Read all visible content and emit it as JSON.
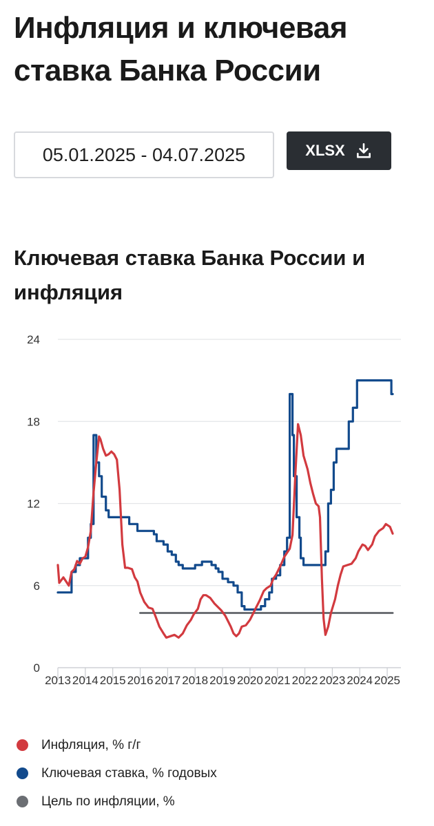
{
  "header": {
    "title": "Инфляция и ключевая ставка Банка России"
  },
  "controls": {
    "date_range": "05.01.2025 - 04.07.2025",
    "export_label": "XLSX",
    "export_icon": "download-icon"
  },
  "chart_title": "Ключевая ставка Банка России и инфляция",
  "colors": {
    "inflation": "#d23a3f",
    "key_rate": "#124a8c",
    "target": "#6b6e73",
    "grid": "#e3e5e8",
    "axis_text": "#333333"
  },
  "legend": {
    "inflation": "Инфляция, % г/г",
    "key_rate": "Ключевая ставка, % годовых",
    "target": "Цель по инфляции, %"
  },
  "chart_data": {
    "type": "line",
    "title": "Ключевая ставка Банка России и инфляция",
    "xlabel": "",
    "ylabel": "",
    "ylim": [
      0,
      24
    ],
    "yticks": [
      0,
      6,
      12,
      18,
      24
    ],
    "xlim": [
      2013.0,
      2025.5
    ],
    "xticks": [
      {
        "label": "2013",
        "x": 2013.0
      },
      {
        "label": "2014",
        "x": 2014.0
      },
      {
        "label": "2015",
        "x": 2015.0
      },
      {
        "label": "2016",
        "x": 2016.0
      },
      {
        "label": "2017",
        "x": 2017.0
      },
      {
        "label": "2018",
        "x": 2018.0
      },
      {
        "label": "2019",
        "x": 2019.0
      },
      {
        "label": "2020",
        "x": 2020.0
      },
      {
        "label": "2021",
        "x": 2021.0
      },
      {
        "label": "2022",
        "x": 2022.0
      },
      {
        "label": "2023",
        "x": 2023.0
      },
      {
        "label": "2024",
        "x": 2024.0
      },
      {
        "label": "2025",
        "x": 2025.0
      }
    ],
    "grid": true,
    "legend_position": "bottom",
    "series": [
      {
        "name": "Инфляция, % г/г",
        "key": "inflation",
        "step": false,
        "points": [
          [
            2013.0,
            7.5
          ],
          [
            2013.05,
            6.2
          ],
          [
            2013.2,
            6.6
          ],
          [
            2013.3,
            6.3
          ],
          [
            2013.4,
            6.0
          ],
          [
            2013.5,
            7.0
          ],
          [
            2013.6,
            7.2
          ],
          [
            2013.7,
            7.8
          ],
          [
            2013.8,
            7.6
          ],
          [
            2013.9,
            8.0
          ],
          [
            2014.0,
            8.1
          ],
          [
            2014.1,
            8.8
          ],
          [
            2014.2,
            10.0
          ],
          [
            2014.3,
            12.8
          ],
          [
            2014.4,
            15.0
          ],
          [
            2014.5,
            16.9
          ],
          [
            2014.55,
            16.7
          ],
          [
            2014.65,
            16.0
          ],
          [
            2014.75,
            15.5
          ],
          [
            2014.85,
            15.6
          ],
          [
            2014.95,
            15.8
          ],
          [
            2015.05,
            15.6
          ],
          [
            2015.15,
            15.2
          ],
          [
            2015.25,
            13.0
          ],
          [
            2015.35,
            9.0
          ],
          [
            2015.45,
            7.3
          ],
          [
            2015.55,
            7.3
          ],
          [
            2015.7,
            7.2
          ],
          [
            2015.8,
            6.6
          ],
          [
            2015.9,
            6.3
          ],
          [
            2016.0,
            5.5
          ],
          [
            2016.15,
            4.8
          ],
          [
            2016.3,
            4.4
          ],
          [
            2016.45,
            4.3
          ],
          [
            2016.55,
            3.8
          ],
          [
            2016.7,
            3.0
          ],
          [
            2016.85,
            2.5
          ],
          [
            2016.95,
            2.2
          ],
          [
            2017.1,
            2.3
          ],
          [
            2017.25,
            2.4
          ],
          [
            2017.4,
            2.2
          ],
          [
            2017.55,
            2.5
          ],
          [
            2017.7,
            3.1
          ],
          [
            2017.85,
            3.5
          ],
          [
            2017.95,
            3.9
          ],
          [
            2018.1,
            4.3
          ],
          [
            2018.2,
            5.0
          ],
          [
            2018.3,
            5.3
          ],
          [
            2018.4,
            5.3
          ],
          [
            2018.55,
            5.1
          ],
          [
            2018.7,
            4.7
          ],
          [
            2018.85,
            4.4
          ],
          [
            2018.95,
            4.2
          ],
          [
            2019.1,
            3.8
          ],
          [
            2019.2,
            3.4
          ],
          [
            2019.3,
            3.0
          ],
          [
            2019.4,
            2.5
          ],
          [
            2019.5,
            2.3
          ],
          [
            2019.6,
            2.5
          ],
          [
            2019.7,
            3.0
          ],
          [
            2019.85,
            3.1
          ],
          [
            2020.0,
            3.5
          ],
          [
            2020.1,
            3.9
          ],
          [
            2020.2,
            4.3
          ],
          [
            2020.35,
            4.9
          ],
          [
            2020.5,
            5.6
          ],
          [
            2020.6,
            5.8
          ],
          [
            2020.75,
            6.0
          ],
          [
            2020.85,
            6.5
          ],
          [
            2020.95,
            6.8
          ],
          [
            2021.1,
            7.4
          ],
          [
            2021.25,
            8.1
          ],
          [
            2021.35,
            8.4
          ],
          [
            2021.45,
            8.7
          ],
          [
            2021.55,
            9.7
          ],
          [
            2021.65,
            14.0
          ],
          [
            2021.75,
            17.8
          ],
          [
            2021.85,
            17.0
          ],
          [
            2021.95,
            15.5
          ],
          [
            2022.1,
            14.5
          ],
          [
            2022.2,
            13.5
          ],
          [
            2022.3,
            12.7
          ],
          [
            2022.4,
            12.0
          ],
          [
            2022.5,
            11.8
          ],
          [
            2022.55,
            11.0
          ],
          [
            2022.62,
            6.5
          ],
          [
            2022.68,
            3.6
          ],
          [
            2022.75,
            2.4
          ],
          [
            2022.85,
            3.0
          ],
          [
            2022.95,
            4.0
          ],
          [
            2023.1,
            5.0
          ],
          [
            2023.2,
            6.0
          ],
          [
            2023.3,
            6.8
          ],
          [
            2023.4,
            7.4
          ],
          [
            2023.55,
            7.5
          ],
          [
            2023.7,
            7.6
          ],
          [
            2023.85,
            8.0
          ],
          [
            2023.95,
            8.5
          ],
          [
            2024.1,
            9.0
          ],
          [
            2024.2,
            8.9
          ],
          [
            2024.3,
            8.6
          ],
          [
            2024.45,
            9.0
          ],
          [
            2024.55,
            9.6
          ],
          [
            2024.7,
            10.0
          ],
          [
            2024.85,
            10.2
          ],
          [
            2024.95,
            10.5
          ],
          [
            2025.1,
            10.3
          ],
          [
            2025.2,
            9.8
          ]
        ]
      },
      {
        "name": "Ключевая ставка, % годовых",
        "key": "key_rate",
        "step": true,
        "points": [
          [
            2013.0,
            5.5
          ],
          [
            2013.5,
            7.0
          ],
          [
            2013.65,
            7.5
          ],
          [
            2013.8,
            8.0
          ],
          [
            2014.1,
            9.5
          ],
          [
            2014.2,
            10.5
          ],
          [
            2014.3,
            17.0
          ],
          [
            2014.4,
            15.0
          ],
          [
            2014.5,
            14.0
          ],
          [
            2014.6,
            12.5
          ],
          [
            2014.75,
            11.5
          ],
          [
            2014.85,
            11.0
          ],
          [
            2015.6,
            10.5
          ],
          [
            2015.9,
            10.0
          ],
          [
            2016.5,
            9.75
          ],
          [
            2016.6,
            9.25
          ],
          [
            2016.85,
            9.0
          ],
          [
            2017.0,
            8.5
          ],
          [
            2017.15,
            8.25
          ],
          [
            2017.3,
            7.75
          ],
          [
            2017.4,
            7.5
          ],
          [
            2017.55,
            7.25
          ],
          [
            2018.0,
            7.5
          ],
          [
            2018.25,
            7.75
          ],
          [
            2018.6,
            7.5
          ],
          [
            2018.75,
            7.25
          ],
          [
            2018.85,
            7.0
          ],
          [
            2019.0,
            6.5
          ],
          [
            2019.2,
            6.25
          ],
          [
            2019.4,
            6.0
          ],
          [
            2019.55,
            5.5
          ],
          [
            2019.7,
            4.5
          ],
          [
            2019.8,
            4.25
          ],
          [
            2020.4,
            4.5
          ],
          [
            2020.55,
            5.0
          ],
          [
            2020.7,
            5.5
          ],
          [
            2020.8,
            6.5
          ],
          [
            2020.95,
            6.75
          ],
          [
            2021.1,
            7.5
          ],
          [
            2021.25,
            8.5
          ],
          [
            2021.35,
            9.5
          ],
          [
            2021.45,
            20.0
          ],
          [
            2021.55,
            17.0
          ],
          [
            2021.6,
            14.0
          ],
          [
            2021.7,
            11.0
          ],
          [
            2021.8,
            9.5
          ],
          [
            2021.85,
            8.0
          ],
          [
            2021.95,
            7.5
          ],
          [
            2022.5,
            7.5
          ],
          [
            2022.75,
            8.5
          ],
          [
            2022.85,
            12.0
          ],
          [
            2022.95,
            13.0
          ],
          [
            2023.05,
            15.0
          ],
          [
            2023.15,
            16.0
          ],
          [
            2023.6,
            18.0
          ],
          [
            2023.75,
            19.0
          ],
          [
            2023.9,
            21.0
          ],
          [
            2025.0,
            21.0
          ],
          [
            2025.15,
            20.0
          ],
          [
            2025.2,
            20.0
          ]
        ]
      },
      {
        "name": "Цель по инфляции, %",
        "key": "target",
        "step": false,
        "points": [
          [
            2016.0,
            4.0
          ],
          [
            2025.2,
            4.0
          ]
        ]
      }
    ]
  }
}
